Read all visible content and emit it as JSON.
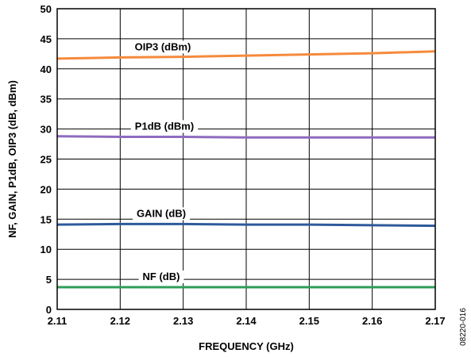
{
  "chart_data": {
    "type": "line",
    "xlabel": "FREQUENCY (GHz)",
    "ylabel": "NF, GAIN, P1dB, OIP3 (dB, dBm)",
    "xlim": [
      2.11,
      2.17
    ],
    "ylim": [
      0,
      50
    ],
    "x_ticks": [
      "2.11",
      "2.12",
      "2.13",
      "2.14",
      "2.15",
      "2.16",
      "2.17"
    ],
    "y_ticks": [
      "0",
      "5",
      "10",
      "15",
      "20",
      "25",
      "30",
      "35",
      "40",
      "45",
      "50"
    ],
    "grid": true,
    "figure_code": "08220-016",
    "series": [
      {
        "name": "OIP3 (dBm)",
        "color": "#F58A3C",
        "x": [
          2.11,
          2.12,
          2.13,
          2.14,
          2.15,
          2.16,
          2.17
        ],
        "y": [
          41.7,
          41.9,
          42.0,
          42.2,
          42.4,
          42.6,
          42.9
        ]
      },
      {
        "name": "P1dB (dBm)",
        "color": "#8E6BBF",
        "x": [
          2.11,
          2.12,
          2.13,
          2.14,
          2.15,
          2.16,
          2.17
        ],
        "y": [
          28.8,
          28.7,
          28.7,
          28.6,
          28.6,
          28.6,
          28.6
        ]
      },
      {
        "name": "GAIN (dB)",
        "color": "#2E5A9B",
        "x": [
          2.11,
          2.12,
          2.13,
          2.14,
          2.15,
          2.16,
          2.17
        ],
        "y": [
          14.1,
          14.2,
          14.2,
          14.1,
          14.1,
          14.0,
          13.9
        ]
      },
      {
        "name": "NF (dB)",
        "color": "#2E9E5B",
        "x": [
          2.11,
          2.12,
          2.13,
          2.14,
          2.15,
          2.16,
          2.17
        ],
        "y": [
          3.7,
          3.7,
          3.7,
          3.7,
          3.7,
          3.7,
          3.7
        ]
      }
    ]
  }
}
